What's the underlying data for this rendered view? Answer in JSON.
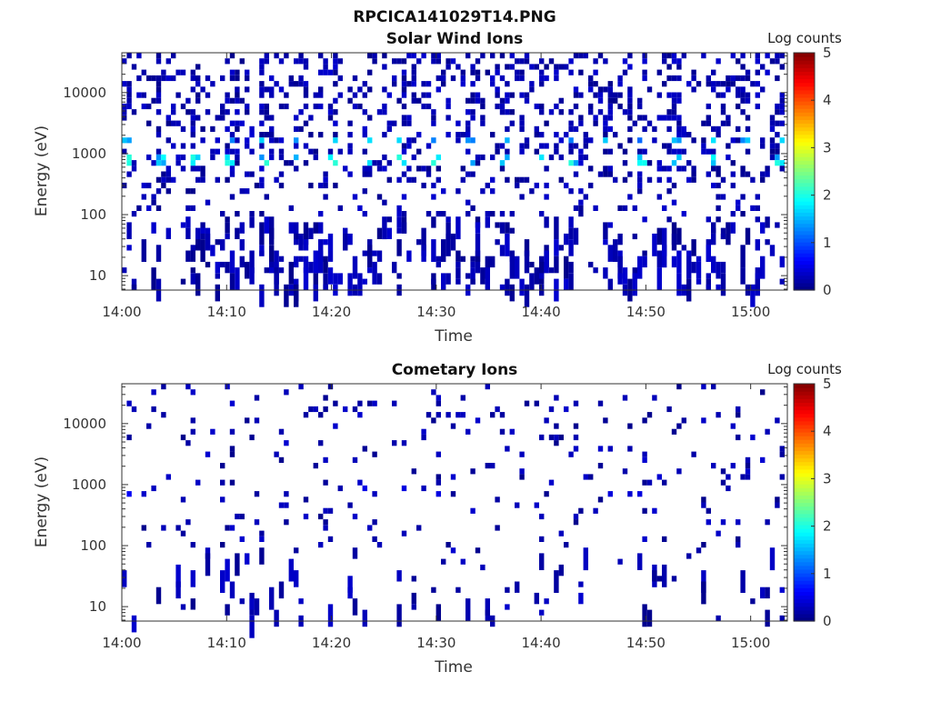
{
  "figure_title": "RPCICA141029T14.PNG",
  "chart_data": [
    {
      "type": "heatmap",
      "title": "Solar Wind Ions",
      "xlabel": "Time",
      "ylabel": "Energy (eV)",
      "x_ticks": [
        "14:00",
        "14:10",
        "14:20",
        "14:30",
        "14:40",
        "14:50",
        "15:00"
      ],
      "y_ticks": [
        "10",
        "100",
        "1000",
        "10000"
      ],
      "y_scale": "log",
      "ylim": [
        5.8,
        45000
      ],
      "xlim_minutes": [
        0,
        63.5
      ],
      "colorbar": {
        "label": "Log counts",
        "ticks": [
          "0",
          "1",
          "2",
          "3",
          "4",
          "5"
        ],
        "range": [
          0,
          5
        ],
        "colormap": "jet"
      },
      "bands": [
        {
          "energy": 800,
          "level": 1.9
        },
        {
          "energy": 1700,
          "level": 1.6
        }
      ],
      "density": 0.45
    },
    {
      "type": "heatmap",
      "title": "Cometary Ions",
      "xlabel": "Time",
      "ylabel": "Energy (eV)",
      "x_ticks": [
        "14:00",
        "14:10",
        "14:20",
        "14:30",
        "14:40",
        "14:50",
        "15:00"
      ],
      "y_ticks": [
        "10",
        "100",
        "1000",
        "10000"
      ],
      "y_scale": "log",
      "ylim": [
        5.8,
        45000
      ],
      "xlim_minutes": [
        0,
        63.5
      ],
      "colorbar": {
        "label": "Log counts",
        "ticks": [
          "0",
          "1",
          "2",
          "3",
          "4",
          "5"
        ],
        "range": [
          0,
          5
        ],
        "colormap": "jet"
      },
      "bands": [
        {
          "energy": 800,
          "level": 0.6
        }
      ],
      "density": 0.1
    }
  ]
}
